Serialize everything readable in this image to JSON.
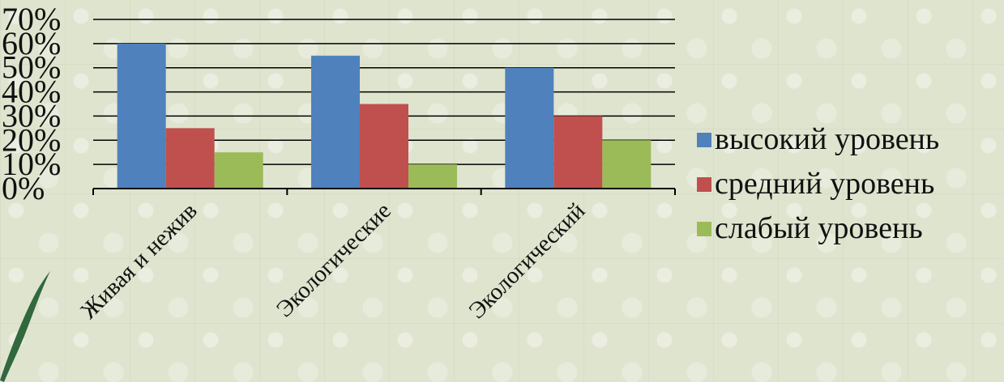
{
  "chart_data": {
    "type": "bar",
    "categories": [
      "Живая и нежив",
      "Экологические",
      "Экологический"
    ],
    "series": [
      {
        "name": "высокий уровень",
        "color": "#4f81bd",
        "values": [
          60,
          55,
          50
        ]
      },
      {
        "name": "средний уровень",
        "color": "#c0504d",
        "values": [
          25,
          35,
          30
        ]
      },
      {
        "name": "слабый уровень",
        "color": "#9bbb59",
        "values": [
          15,
          10,
          20
        ]
      }
    ],
    "yticks": [
      "0%",
      "10%",
      "20%",
      "30%",
      "40%",
      "50%",
      "60%",
      "70%"
    ],
    "ylim": [
      0,
      70
    ],
    "grid": true,
    "legend": "right"
  }
}
